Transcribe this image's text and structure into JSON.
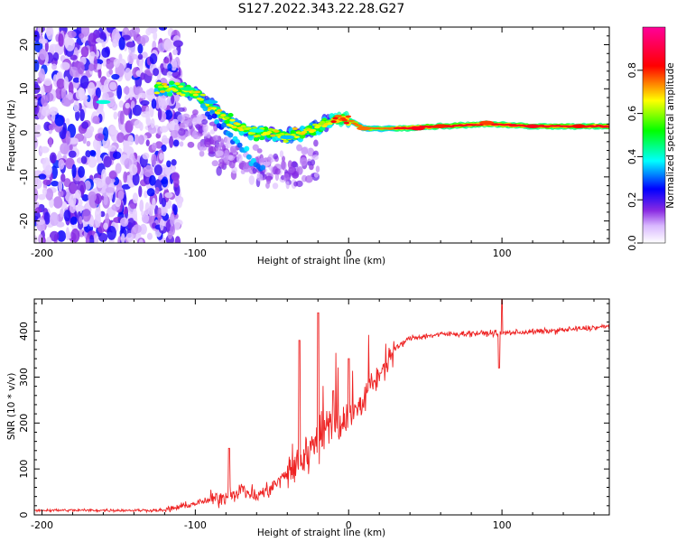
{
  "title": "S127.2022.343.22.28.G27",
  "chart_data": [
    {
      "type": "heatmap",
      "xlabel": "Height of straight line (km)",
      "ylabel": "Frequency (Hz)",
      "xlim": [
        -205,
        170
      ],
      "ylim": [
        -25,
        24
      ],
      "xticks": [
        -200,
        -100,
        0,
        100
      ],
      "yticks": [
        -20,
        -10,
        0,
        10,
        20
      ],
      "colorbar": {
        "label": "Normalized spectral amplitude",
        "range": [
          0.0,
          1.0
        ],
        "ticks": [
          "0.0",
          "0.2",
          "0.4",
          "0.6",
          "0.8"
        ],
        "colors": [
          "#ffffff",
          "#8a2be2",
          "#0000ff",
          "#00ffff",
          "#00ff00",
          "#ffff00",
          "#ff0000",
          "#ff00aa"
        ]
      },
      "ridge": [
        {
          "x": -120,
          "y": 10
        },
        {
          "x": -110,
          "y": 10
        },
        {
          "x": -100,
          "y": 9
        },
        {
          "x": -90,
          "y": 6
        },
        {
          "x": -80,
          "y": 3
        },
        {
          "x": -70,
          "y": 1
        },
        {
          "x": -60,
          "y": 0
        },
        {
          "x": -50,
          "y": 0
        },
        {
          "x": -40,
          "y": -1
        },
        {
          "x": -30,
          "y": 0
        },
        {
          "x": -20,
          "y": 1
        },
        {
          "x": -10,
          "y": 3
        },
        {
          "x": 0,
          "y": 3
        },
        {
          "x": 10,
          "y": 1
        },
        {
          "x": 30,
          "y": 1
        },
        {
          "x": 60,
          "y": 1.5
        },
        {
          "x": 90,
          "y": 2
        },
        {
          "x": 120,
          "y": 1.5
        },
        {
          "x": 170,
          "y": 1.5
        }
      ]
    },
    {
      "type": "line",
      "xlabel": "Height of straight line (km)",
      "ylabel": "SNR (10 * v/v)",
      "xlim": [
        -205,
        170
      ],
      "ylim": [
        0,
        470
      ],
      "xticks": [
        -200,
        -100,
        0,
        100
      ],
      "yticks": [
        0,
        100,
        200,
        300,
        400
      ],
      "color": "#ee2222",
      "series_envelope": [
        {
          "x": -205,
          "y": 10
        },
        {
          "x": -150,
          "y": 10
        },
        {
          "x": -120,
          "y": 10
        },
        {
          "x": -100,
          "y": 25
        },
        {
          "x": -80,
          "y": 40
        },
        {
          "x": -70,
          "y": 55
        },
        {
          "x": -60,
          "y": 40
        },
        {
          "x": -50,
          "y": 60
        },
        {
          "x": -40,
          "y": 90
        },
        {
          "x": -30,
          "y": 120
        },
        {
          "x": -20,
          "y": 170
        },
        {
          "x": -10,
          "y": 200
        },
        {
          "x": 0,
          "y": 210
        },
        {
          "x": 10,
          "y": 250
        },
        {
          "x": 20,
          "y": 310
        },
        {
          "x": 30,
          "y": 360
        },
        {
          "x": 40,
          "y": 385
        },
        {
          "x": 60,
          "y": 393
        },
        {
          "x": 80,
          "y": 395
        },
        {
          "x": 100,
          "y": 396
        },
        {
          "x": 130,
          "y": 400
        },
        {
          "x": 170,
          "y": 410
        }
      ],
      "peaks": [
        {
          "x": -78,
          "y": 145
        },
        {
          "x": -32,
          "y": 380
        },
        {
          "x": -20,
          "y": 440
        },
        {
          "x": -10,
          "y": 270
        },
        {
          "x": 0,
          "y": 340
        },
        {
          "x": 100,
          "y": 470
        },
        {
          "x": 98,
          "y": 320
        }
      ]
    }
  ]
}
